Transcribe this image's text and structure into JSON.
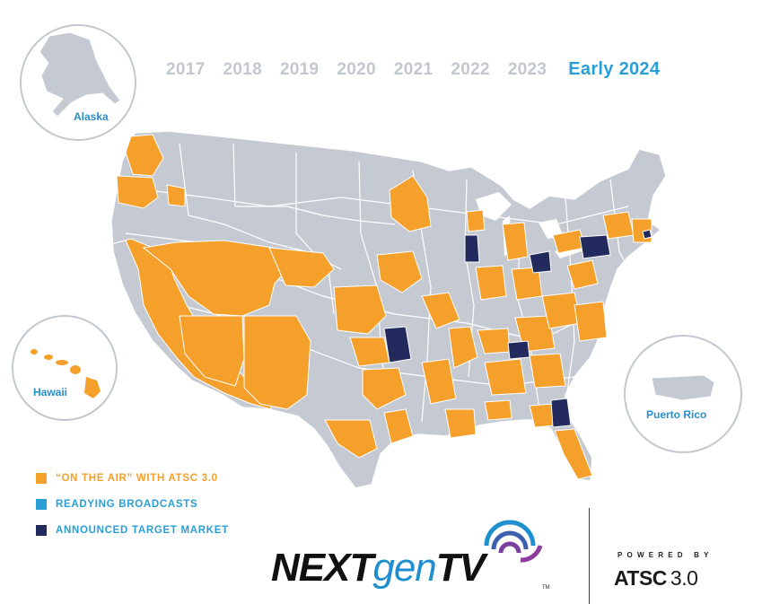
{
  "years": [
    "2017",
    "2018",
    "2019",
    "2020",
    "2021",
    "2022",
    "2023"
  ],
  "current_year": "Early 2024",
  "insets": {
    "alaska": "Alaska",
    "hawaii": "Hawaii",
    "puerto_rico": "Puerto Rico"
  },
  "legend": [
    {
      "label": "“ON THE AIR” WITH ATSC 3.0",
      "color": "#f5a02a"
    },
    {
      "label": "READYING BROADCASTS",
      "color": "#2a9fd6"
    },
    {
      "label": "ANNOUNCED TARGET MARKET",
      "color": "#222a5e"
    }
  ],
  "colors": {
    "land": "#c5c9d1",
    "border": "#ffffff",
    "on_air": "#f5a02a",
    "readying": "#2a9fd6",
    "target": "#222a5e",
    "inset_circle": "#c3c7cf",
    "accent": "#2a9fd6"
  },
  "logo": {
    "part1": "NEXT",
    "part2": "gen",
    "part3": "TV",
    "tm": "TM"
  },
  "powered_by": "POWERED BY",
  "atsc": {
    "name": "ATSC",
    "version": "3.0"
  }
}
